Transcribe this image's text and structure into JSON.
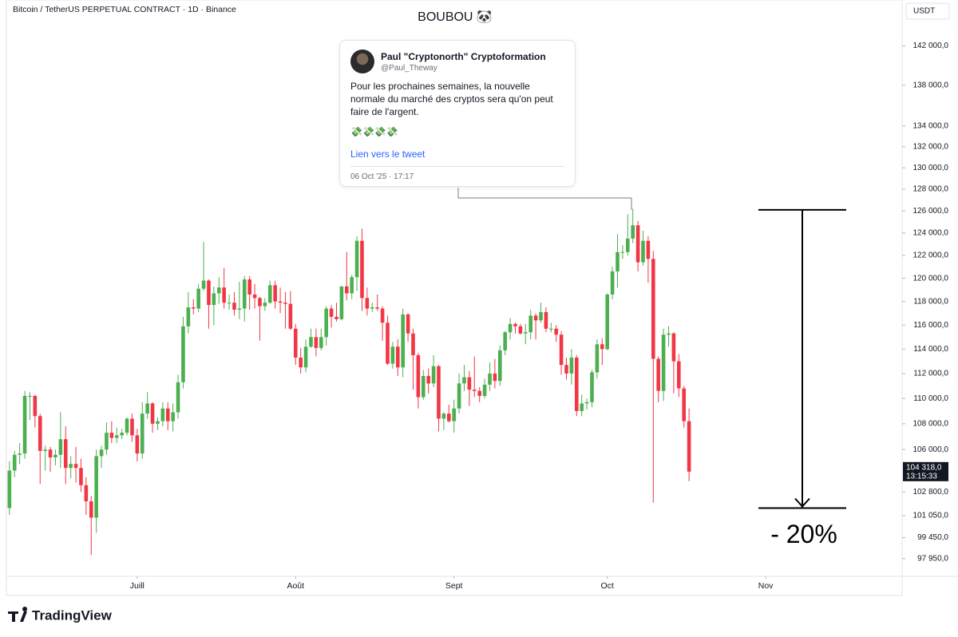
{
  "chart_data": {
    "type": "candlestick",
    "title": "BOUBOU 🐼",
    "symbol": "Bitcoin / TetherUS PERPETUAL CONTRACT · 1D · Binance",
    "currency": "USDT",
    "log": true,
    "up_color": "#4caf50",
    "down_color": "#f23645",
    "open": [
      101600,
      104400,
      105600,
      105700,
      110200,
      110200,
      108600,
      105900,
      106000,
      105400,
      105600,
      106800,
      104600,
      104900,
      104600,
      103300,
      102100,
      100900,
      105500,
      106000,
      107300,
      106900,
      107100,
      107300,
      108400,
      107100,
      105700,
      108800,
      109600,
      108000,
      108200,
      109200,
      108200,
      108900,
      111300,
      115900,
      117500,
      117400,
      119100,
      119800,
      117700,
      118700,
      119200,
      117900,
      117900,
      117300,
      117400,
      119900,
      118600,
      118300,
      117600,
      117900,
      119400,
      118000,
      117900,
      117800,
      115700,
      113300,
      112500,
      114200,
      115000,
      114100,
      115000,
      117400,
      116700,
      116500,
      119300,
      118700,
      120100,
      123300,
      118300,
      117400,
      117500,
      117400,
      116200,
      112800,
      114200,
      112500,
      116900,
      115300,
      113500,
      110100,
      111800,
      111200,
      112600,
      108400,
      108800,
      108200,
      109200,
      111200,
      111700,
      110700,
      110600,
      110200,
      111100,
      112000,
      111400,
      113900,
      115400,
      116100,
      115900,
      115300,
      115400,
      116800,
      116400,
      117100,
      115700,
      115700,
      115200,
      112700,
      112000,
      113300,
      109000,
      109600,
      109700,
      112100,
      114400,
      114000,
      118600,
      120600,
      122300,
      122300,
      123500,
      124700,
      121400,
      123300,
      121700,
      113200,
      110600,
      115200,
      115300,
      113000,
      110800,
      108200
    ],
    "high": [
      105100,
      105900,
      106500,
      110600,
      110500,
      110300,
      108800,
      106300,
      106200,
      106000,
      108900,
      107800,
      105500,
      106200,
      105300,
      103900,
      102500,
      106000,
      106300,
      108100,
      108200,
      107700,
      107600,
      108500,
      108800,
      107600,
      109700,
      110500,
      109700,
      108500,
      109700,
      109700,
      109600,
      111900,
      116700,
      118800,
      118200,
      119500,
      123200,
      119900,
      119300,
      120100,
      120900,
      118600,
      118800,
      119700,
      120200,
      120200,
      119500,
      118400,
      118300,
      119800,
      119800,
      119200,
      118800,
      118900,
      116100,
      114100,
      114800,
      115700,
      115700,
      115700,
      117600,
      117700,
      117900,
      119300,
      122300,
      120300,
      123700,
      124400,
      119200,
      117900,
      118600,
      117600,
      116800,
      114600,
      114800,
      117400,
      117000,
      115700,
      113700,
      112300,
      112400,
      113500,
      112700,
      108900,
      109500,
      109900,
      112000,
      112700,
      112200,
      113400,
      110900,
      111600,
      112900,
      113200,
      114300,
      115500,
      116600,
      116200,
      116100,
      116100,
      117300,
      117000,
      117900,
      117500,
      116200,
      116000,
      115500,
      113300,
      114000,
      113500,
      110300,
      110000,
      112300,
      114800,
      114900,
      118700,
      121000,
      123900,
      122900,
      125700,
      126200,
      125100,
      124200,
      123700,
      122400,
      113400,
      115700,
      115900,
      115400,
      113600,
      111000,
      109200
    ],
    "low": [
      101100,
      103900,
      104900,
      105300,
      108300,
      107700,
      103400,
      104400,
      104300,
      104800,
      104600,
      103400,
      103800,
      103500,
      102800,
      101100,
      98200,
      99800,
      104600,
      105600,
      106500,
      106500,
      106800,
      107100,
      106600,
      105100,
      105300,
      108400,
      107300,
      107500,
      107800,
      107500,
      107400,
      108400,
      110800,
      115300,
      116900,
      117100,
      118900,
      115700,
      116000,
      117800,
      117400,
      117300,
      116800,
      116500,
      116300,
      117300,
      117400,
      114700,
      117200,
      117800,
      117400,
      117000,
      115700,
      115600,
      112700,
      112000,
      112100,
      114100,
      113400,
      113900,
      114300,
      115800,
      116300,
      116400,
      118100,
      118200,
      118900,
      117200,
      116800,
      117100,
      117200,
      114700,
      112700,
      112400,
      111800,
      111700,
      114600,
      110700,
      109200,
      109900,
      110400,
      110900,
      107400,
      107500,
      108100,
      107300,
      108800,
      110600,
      109400,
      110100,
      109700,
      110000,
      110600,
      110800,
      111000,
      113500,
      114800,
      115300,
      115200,
      114400,
      114800,
      114800,
      116200,
      115400,
      115400,
      114600,
      111900,
      111500,
      111100,
      108600,
      108600,
      109100,
      109300,
      111600,
      112700,
      113900,
      118200,
      119200,
      121700,
      122000,
      123100,
      120600,
      121100,
      119600,
      102000,
      109700,
      109800,
      114200,
      110400,
      110100,
      107700,
      103600
    ],
    "close": [
      104400,
      105600,
      105700,
      110200,
      110200,
      108600,
      105900,
      106000,
      105400,
      105600,
      106800,
      104600,
      104900,
      104600,
      103300,
      102100,
      100900,
      105500,
      106000,
      107300,
      106900,
      107100,
      107300,
      108400,
      107100,
      105700,
      108800,
      109600,
      108000,
      108200,
      109200,
      108200,
      108900,
      111300,
      115900,
      117500,
      117400,
      119100,
      119800,
      117700,
      118700,
      119200,
      117900,
      117900,
      117300,
      117400,
      119900,
      118600,
      118300,
      117600,
      117900,
      119400,
      118000,
      117900,
      117800,
      115700,
      113300,
      112500,
      114200,
      115000,
      114100,
      115000,
      117400,
      116700,
      116500,
      119300,
      118700,
      120100,
      123300,
      118300,
      117400,
      117500,
      117400,
      116200,
      112800,
      114200,
      112500,
      116900,
      115300,
      113500,
      110100,
      111800,
      111200,
      112600,
      108400,
      108800,
      108200,
      109200,
      111200,
      111700,
      110700,
      110600,
      110200,
      111100,
      112000,
      111400,
      113900,
      115400,
      116100,
      115900,
      115300,
      115400,
      116800,
      116400,
      117100,
      115700,
      115700,
      115200,
      112700,
      112000,
      113300,
      109000,
      109600,
      109700,
      112100,
      114400,
      114000,
      118600,
      120600,
      122300,
      122300,
      123500,
      124700,
      121400,
      123300,
      121700,
      113200,
      110600,
      115200,
      115300,
      113000,
      110800,
      108200,
      104318
    ],
    "xlim": [
      -0.6,
      174.7
    ],
    "xticks": [
      {
        "value": 25,
        "label": "Juill"
      },
      {
        "value": 56,
        "label": "Août"
      },
      {
        "value": 87,
        "label": "Sept"
      },
      {
        "value": 117,
        "label": "Oct"
      },
      {
        "value": 148,
        "label": "Nov"
      }
    ],
    "ylim": [
      96700,
      146800
    ],
    "yticks": [
      {
        "value": 142000,
        "label": "142 000,0"
      },
      {
        "value": 138000,
        "label": "138 000,0"
      },
      {
        "value": 134000,
        "label": "134 000,0"
      },
      {
        "value": 132000,
        "label": "132 000,0"
      },
      {
        "value": 130000,
        "label": "130 000,0"
      },
      {
        "value": 128000,
        "label": "128 000,0"
      },
      {
        "value": 126000,
        "label": "126 000,0"
      },
      {
        "value": 124000,
        "label": "124 000,0"
      },
      {
        "value": 122000,
        "label": "122 000,0"
      },
      {
        "value": 120000,
        "label": "120 000,0"
      },
      {
        "value": 118000,
        "label": "118 000,0"
      },
      {
        "value": 116000,
        "label": "116 000,0"
      },
      {
        "value": 114000,
        "label": "114 000,0"
      },
      {
        "value": 112000,
        "label": "112 000,0"
      },
      {
        "value": 110000,
        "label": "110 000,0"
      },
      {
        "value": 108000,
        "label": "108 000,0"
      },
      {
        "value": 106000,
        "label": "106 000,0"
      },
      {
        "value": 102800,
        "label": "102 800,0"
      },
      {
        "value": 101050,
        "label": "101 050,0"
      },
      {
        "value": 99450,
        "label": "99 450,0"
      },
      {
        "value": 97950,
        "label": "97 950,0"
      }
    ],
    "last_price": {
      "value": 104318,
      "label": "104 318,0"
    },
    "countdown": "13:15:33",
    "measure": {
      "from": 126100,
      "to": 101600,
      "label": "- 20%"
    }
  },
  "tweet": {
    "author": "Paul \"Cryptonorth\" Cryptoformation",
    "handle": "@Paul_Theway",
    "text": "Pour les prochaines semaines, la nouvelle normale du marché des cryptos sera qu'on peut faire de l'argent.",
    "emoji": "💸💸💸💸",
    "link": "Lien vers le tweet",
    "date": "06 Oct '25 · 17:17"
  },
  "brand": "TradingView"
}
